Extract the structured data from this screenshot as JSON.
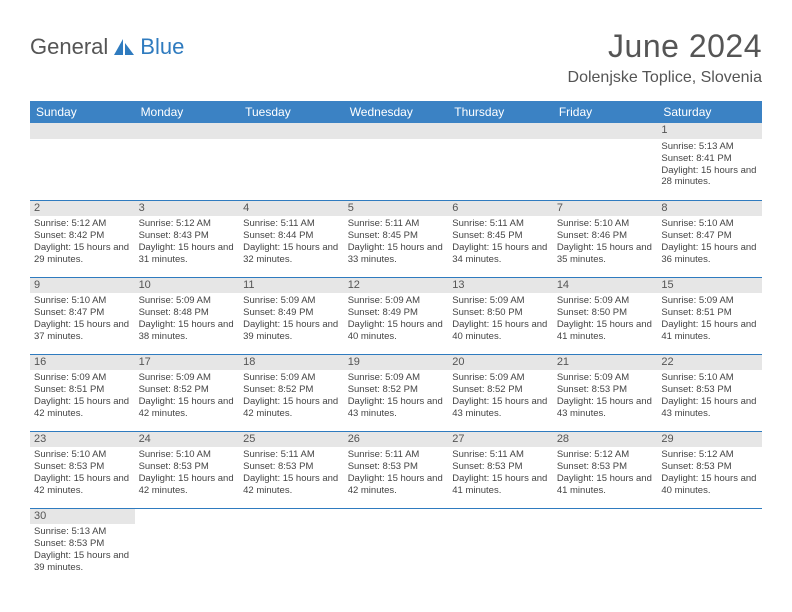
{
  "brand": {
    "part1": "General",
    "part2": "Blue"
  },
  "title": "June 2024",
  "location": "Dolenjske Toplice, Slovenia",
  "colors": {
    "header_bg": "#3b82c4",
    "header_text": "#ffffff",
    "row_border": "#2f7bbf",
    "daynum_bg": "#e6e6e6",
    "text": "#444444",
    "brand_blue": "#2f7bbf"
  },
  "columns": [
    "Sunday",
    "Monday",
    "Tuesday",
    "Wednesday",
    "Thursday",
    "Friday",
    "Saturday"
  ],
  "weeks": [
    [
      null,
      null,
      null,
      null,
      null,
      null,
      {
        "n": "1",
        "sr": "5:13 AM",
        "ss": "8:41 PM",
        "dl": "15 hours and 28 minutes."
      }
    ],
    [
      {
        "n": "2",
        "sr": "5:12 AM",
        "ss": "8:42 PM",
        "dl": "15 hours and 29 minutes."
      },
      {
        "n": "3",
        "sr": "5:12 AM",
        "ss": "8:43 PM",
        "dl": "15 hours and 31 minutes."
      },
      {
        "n": "4",
        "sr": "5:11 AM",
        "ss": "8:44 PM",
        "dl": "15 hours and 32 minutes."
      },
      {
        "n": "5",
        "sr": "5:11 AM",
        "ss": "8:45 PM",
        "dl": "15 hours and 33 minutes."
      },
      {
        "n": "6",
        "sr": "5:11 AM",
        "ss": "8:45 PM",
        "dl": "15 hours and 34 minutes."
      },
      {
        "n": "7",
        "sr": "5:10 AM",
        "ss": "8:46 PM",
        "dl": "15 hours and 35 minutes."
      },
      {
        "n": "8",
        "sr": "5:10 AM",
        "ss": "8:47 PM",
        "dl": "15 hours and 36 minutes."
      }
    ],
    [
      {
        "n": "9",
        "sr": "5:10 AM",
        "ss": "8:47 PM",
        "dl": "15 hours and 37 minutes."
      },
      {
        "n": "10",
        "sr": "5:09 AM",
        "ss": "8:48 PM",
        "dl": "15 hours and 38 minutes."
      },
      {
        "n": "11",
        "sr": "5:09 AM",
        "ss": "8:49 PM",
        "dl": "15 hours and 39 minutes."
      },
      {
        "n": "12",
        "sr": "5:09 AM",
        "ss": "8:49 PM",
        "dl": "15 hours and 40 minutes."
      },
      {
        "n": "13",
        "sr": "5:09 AM",
        "ss": "8:50 PM",
        "dl": "15 hours and 40 minutes."
      },
      {
        "n": "14",
        "sr": "5:09 AM",
        "ss": "8:50 PM",
        "dl": "15 hours and 41 minutes."
      },
      {
        "n": "15",
        "sr": "5:09 AM",
        "ss": "8:51 PM",
        "dl": "15 hours and 41 minutes."
      }
    ],
    [
      {
        "n": "16",
        "sr": "5:09 AM",
        "ss": "8:51 PM",
        "dl": "15 hours and 42 minutes."
      },
      {
        "n": "17",
        "sr": "5:09 AM",
        "ss": "8:52 PM",
        "dl": "15 hours and 42 minutes."
      },
      {
        "n": "18",
        "sr": "5:09 AM",
        "ss": "8:52 PM",
        "dl": "15 hours and 42 minutes."
      },
      {
        "n": "19",
        "sr": "5:09 AM",
        "ss": "8:52 PM",
        "dl": "15 hours and 43 minutes."
      },
      {
        "n": "20",
        "sr": "5:09 AM",
        "ss": "8:52 PM",
        "dl": "15 hours and 43 minutes."
      },
      {
        "n": "21",
        "sr": "5:09 AM",
        "ss": "8:53 PM",
        "dl": "15 hours and 43 minutes."
      },
      {
        "n": "22",
        "sr": "5:10 AM",
        "ss": "8:53 PM",
        "dl": "15 hours and 43 minutes."
      }
    ],
    [
      {
        "n": "23",
        "sr": "5:10 AM",
        "ss": "8:53 PM",
        "dl": "15 hours and 42 minutes."
      },
      {
        "n": "24",
        "sr": "5:10 AM",
        "ss": "8:53 PM",
        "dl": "15 hours and 42 minutes."
      },
      {
        "n": "25",
        "sr": "5:11 AM",
        "ss": "8:53 PM",
        "dl": "15 hours and 42 minutes."
      },
      {
        "n": "26",
        "sr": "5:11 AM",
        "ss": "8:53 PM",
        "dl": "15 hours and 42 minutes."
      },
      {
        "n": "27",
        "sr": "5:11 AM",
        "ss": "8:53 PM",
        "dl": "15 hours and 41 minutes."
      },
      {
        "n": "28",
        "sr": "5:12 AM",
        "ss": "8:53 PM",
        "dl": "15 hours and 41 minutes."
      },
      {
        "n": "29",
        "sr": "5:12 AM",
        "ss": "8:53 PM",
        "dl": "15 hours and 40 minutes."
      }
    ],
    [
      {
        "n": "30",
        "sr": "5:13 AM",
        "ss": "8:53 PM",
        "dl": "15 hours and 39 minutes."
      },
      null,
      null,
      null,
      null,
      null,
      null
    ]
  ],
  "labels": {
    "sunrise": "Sunrise:",
    "sunset": "Sunset:",
    "daylight": "Daylight:"
  }
}
